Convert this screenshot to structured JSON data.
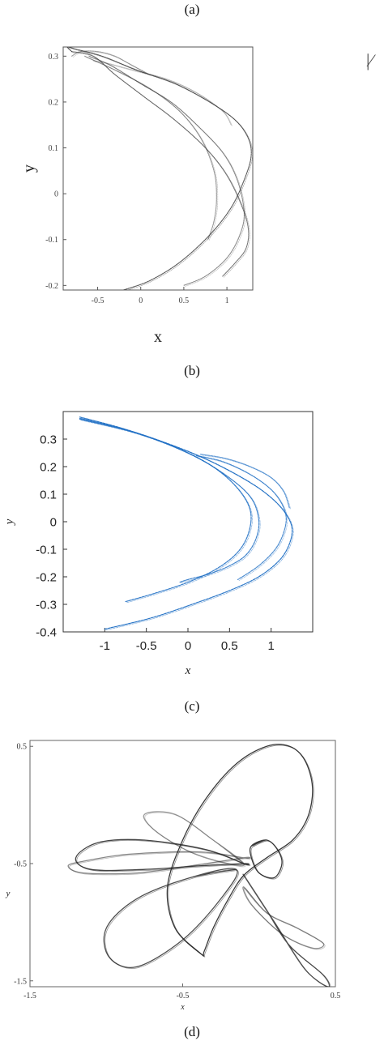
{
  "captions": {
    "a": "(a)",
    "b": "(b)",
    "c": "(c)",
    "d": "(d)"
  },
  "fragment_text": "|⁄",
  "chart_data": [
    {
      "type": "scatter",
      "panel": "b",
      "xlabel": "x",
      "ylabel": "y",
      "xlim": [
        -0.9,
        1.3
      ],
      "ylim": [
        -0.21,
        0.32
      ],
      "xticks": [
        "-0.5",
        "0",
        "0.5",
        "1"
      ],
      "xtick_values": [
        -0.5,
        0,
        0.5,
        1
      ],
      "yticks": [
        "-0.2",
        "-0.1",
        "0",
        "0.1",
        "0.2",
        "0.3"
      ],
      "ytick_values": [
        -0.2,
        -0.1,
        0,
        0.1,
        0.2,
        0.3
      ],
      "grid": false,
      "color": "#3a3a3a",
      "series": [
        {
          "x": [
            -0.2,
            0.1,
            0.45,
            0.8,
            1.05,
            1.2,
            1.28,
            1.25,
            1.1,
            0.8,
            0.4,
            -0.05,
            -0.45,
            -0.75,
            -0.85,
            -0.8
          ],
          "y": [
            -0.21,
            -0.19,
            -0.15,
            -0.09,
            -0.03,
            0.03,
            0.08,
            0.12,
            0.16,
            0.2,
            0.24,
            0.27,
            0.3,
            0.315,
            0.32,
            0.31
          ]
        },
        {
          "x": [
            -0.8,
            -0.55,
            -0.3,
            0.05,
            0.4,
            0.75,
            1.0,
            1.18,
            1.25,
            1.22,
            1.1,
            0.95
          ],
          "y": [
            0.31,
            0.3,
            0.26,
            0.21,
            0.16,
            0.1,
            0.04,
            -0.03,
            -0.08,
            -0.12,
            -0.15,
            -0.18
          ]
        },
        {
          "x": [
            -0.6,
            -0.35,
            0.0,
            0.35,
            0.65,
            0.95,
            1.12,
            1.2,
            1.15,
            1.0,
            0.75,
            0.5
          ],
          "y": [
            0.3,
            0.28,
            0.24,
            0.2,
            0.15,
            0.09,
            0.03,
            -0.04,
            -0.09,
            -0.14,
            -0.18,
            -0.2
          ]
        },
        {
          "x": [
            -0.65,
            -0.3,
            0.1,
            0.45,
            0.7,
            0.85,
            0.88,
            0.85,
            0.78
          ],
          "y": [
            0.3,
            0.27,
            0.23,
            0.18,
            0.12,
            0.05,
            -0.01,
            -0.06,
            -0.1
          ]
        },
        {
          "x": [
            -0.55,
            -0.4,
            -0.1,
            0.3,
            0.65,
            0.95,
            1.05
          ],
          "y": [
            0.29,
            0.285,
            0.27,
            0.25,
            0.22,
            0.18,
            0.15
          ]
        },
        {
          "x": [
            -0.8,
            -0.7,
            -0.5,
            -0.3,
            -0.1,
            0.1
          ],
          "y": [
            0.3,
            0.31,
            0.31,
            0.3,
            0.28,
            0.26
          ]
        }
      ]
    },
    {
      "type": "scatter",
      "panel": "c",
      "xlabel": "x",
      "ylabel": "y",
      "xlim": [
        -1.5,
        1.5
      ],
      "ylim": [
        -0.4,
        0.4
      ],
      "xticks": [
        "-1",
        "-0.5",
        "0",
        "0.5",
        "1"
      ],
      "xtick_values": [
        -1,
        -0.5,
        0,
        0.5,
        1
      ],
      "yticks": [
        "-0.4",
        "-0.3",
        "-0.2",
        "-0.1",
        "0",
        "0.1",
        "0.2",
        "0.3"
      ],
      "ytick_values": [
        -0.4,
        -0.3,
        -0.2,
        -0.1,
        0,
        0.1,
        0.2,
        0.3
      ],
      "grid": false,
      "color": "#1f6fc4",
      "series": [
        {
          "x": [
            -1.3,
            -0.8,
            -0.3,
            0.2,
            0.65,
            0.95,
            1.15,
            1.25,
            1.22,
            1.1,
            0.85,
            0.5,
            0.05,
            -0.45,
            -1.0
          ],
          "y": [
            0.38,
            0.34,
            0.29,
            0.23,
            0.16,
            0.1,
            0.04,
            -0.02,
            -0.08,
            -0.14,
            -0.2,
            -0.25,
            -0.3,
            -0.35,
            -0.39
          ]
        },
        {
          "x": [
            -1.3,
            -0.7,
            -0.15,
            0.3,
            0.6,
            0.75,
            0.73,
            0.6,
            0.35,
            0.0,
            -0.4,
            -0.75
          ],
          "y": [
            0.375,
            0.33,
            0.27,
            0.2,
            0.12,
            0.04,
            -0.04,
            -0.11,
            -0.17,
            -0.22,
            -0.26,
            -0.29
          ]
        },
        {
          "x": [
            -1.3,
            -0.6,
            0.0,
            0.45,
            0.75,
            0.85,
            0.82,
            0.7,
            0.5,
            0.25,
            0.0,
            -0.1
          ],
          "y": [
            0.372,
            0.32,
            0.25,
            0.17,
            0.09,
            0.01,
            -0.06,
            -0.12,
            -0.16,
            -0.19,
            -0.21,
            -0.22
          ]
        },
        {
          "x": [
            0.1,
            0.4,
            0.7,
            0.95,
            1.1,
            1.18,
            1.15,
            1.05,
            0.85,
            0.6
          ],
          "y": [
            0.24,
            0.22,
            0.18,
            0.13,
            0.08,
            0.02,
            -0.04,
            -0.1,
            -0.16,
            -0.21
          ]
        },
        {
          "x": [
            0.15,
            0.45,
            0.75,
            1.0,
            1.15,
            1.22
          ],
          "y": [
            0.245,
            0.23,
            0.2,
            0.16,
            0.11,
            0.05
          ]
        }
      ]
    },
    {
      "type": "scatter",
      "panel": "d",
      "xlabel": "x",
      "ylabel": "y",
      "xlim": [
        -1.5,
        0.5
      ],
      "ylim": [
        -1.55,
        0.55
      ],
      "xticks": [
        "-1.5",
        "-0.5",
        "0.5"
      ],
      "xtick_values": [
        -1.5,
        -0.5,
        0.5
      ],
      "yticks": [
        "0.5",
        "-0.5",
        "-1.5"
      ],
      "ytick_values": [
        0.5,
        -0.5,
        -1.5
      ],
      "grid": false,
      "color": "#222222",
      "series": [
        {
          "closed": true,
          "x": [
            -0.38,
            -0.55,
            -0.6,
            -0.5,
            -0.35,
            -0.15,
            0.05,
            0.2,
            0.3,
            0.35,
            0.32,
            0.22,
            0.05,
            -0.1,
            -0.2,
            -0.3,
            -0.36
          ],
          "y": [
            -1.27,
            -1.05,
            -0.7,
            -0.3,
            0.05,
            0.35,
            0.5,
            0.5,
            0.38,
            0.15,
            -0.1,
            -0.3,
            -0.45,
            -0.6,
            -0.8,
            -1.05,
            -1.25
          ]
        },
        {
          "closed": true,
          "x": [
            -0.1,
            -0.35,
            -0.75,
            -1.05,
            -1.2,
            -1.1,
            -0.75,
            -0.4,
            -0.1
          ],
          "y": [
            -0.5,
            -0.38,
            -0.3,
            -0.32,
            -0.45,
            -0.55,
            -0.55,
            -0.52,
            -0.5
          ]
        },
        {
          "closed": true,
          "x": [
            -0.1,
            -0.4,
            -0.85,
            -1.15,
            -1.25,
            -1.15,
            -0.8,
            -0.45,
            -0.1
          ],
          "y": [
            -0.45,
            -0.4,
            -0.42,
            -0.48,
            -0.52,
            -0.58,
            -0.58,
            -0.52,
            -0.45
          ]
        },
        {
          "closed": true,
          "x": [
            -0.15,
            -0.45,
            -0.8,
            -1.0,
            -0.98,
            -0.8,
            -0.5,
            -0.25
          ],
          "y": [
            -0.55,
            -0.62,
            -0.8,
            -1.05,
            -1.3,
            -1.38,
            -1.15,
            -0.8
          ]
        },
        {
          "closed": true,
          "x": [
            -0.1,
            0.05,
            0.2,
            0.42,
            0.45,
            0.3,
            0.1,
            -0.05
          ],
          "y": [
            -0.6,
            -0.9,
            -1.2,
            -1.45,
            -1.55,
            -1.4,
            -1.0,
            -0.7
          ]
        },
        {
          "closed": true,
          "x": [
            -0.1,
            0.05,
            0.25,
            0.42,
            0.35,
            0.15,
            -0.05
          ],
          "y": [
            -0.7,
            -0.92,
            -1.05,
            -1.18,
            -1.22,
            -1.1,
            -0.85
          ]
        },
        {
          "closed": true,
          "x": [
            -0.1,
            -0.3,
            -0.55,
            -0.75,
            -0.68,
            -0.45,
            -0.2
          ],
          "y": [
            -0.5,
            -0.3,
            -0.08,
            -0.08,
            -0.22,
            -0.4,
            -0.5
          ]
        },
        {
          "closed": true,
          "x": [
            -0.05,
            0.05,
            0.12,
            0.15,
            0.1,
            0.0,
            -0.05
          ],
          "y": [
            -0.35,
            -0.3,
            -0.38,
            -0.5,
            -0.62,
            -0.58,
            -0.45
          ]
        }
      ]
    }
  ]
}
